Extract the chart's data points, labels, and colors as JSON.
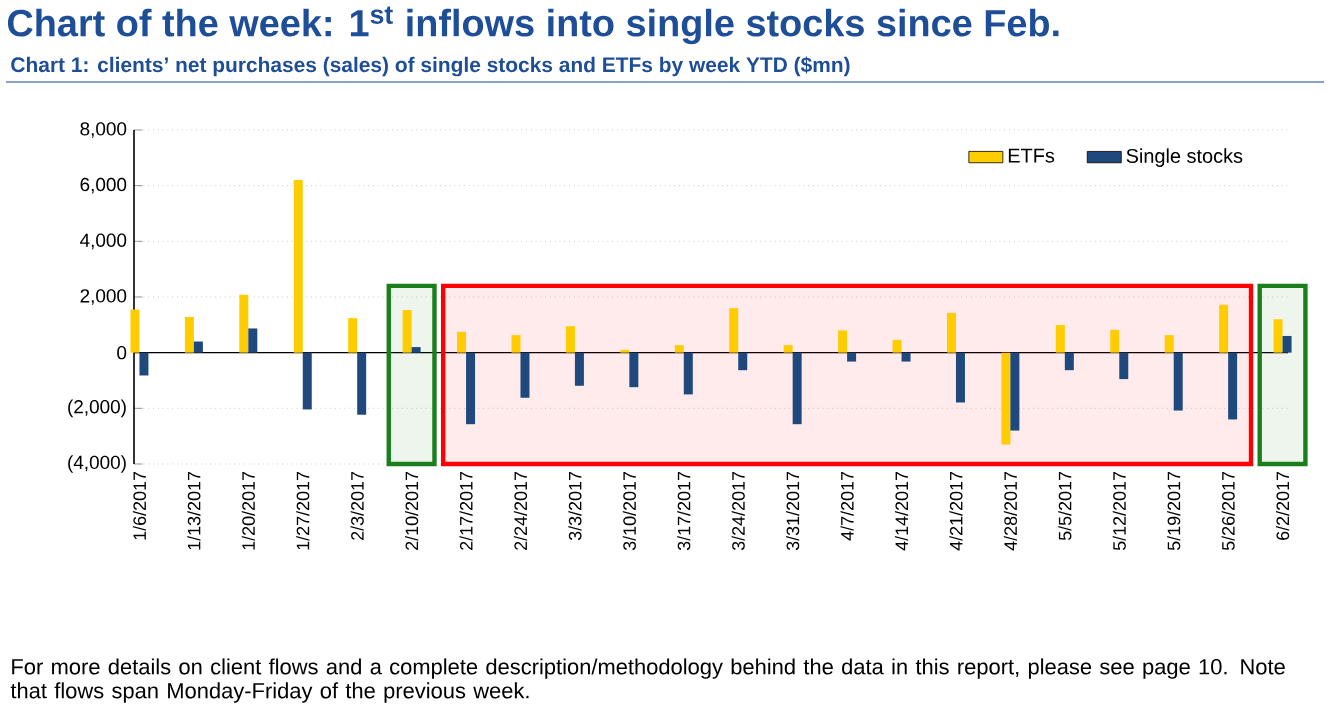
{
  "chart_data": {
    "type": "bar",
    "title": "Chart of the week: 1$^{st}$ inflows into single stocks since Feb.",
    "subtitle": "Chart 1: clients’ net purchases (sales) of single stocks and ETFs by week YTD ($mn)",
    "annotations": [
      "For more details on client flows and a complete description/methodology behind the data in this report, please see page 10. Note that flows span Monday-Friday of the previous week."
    ],
    "categories": [
      "1/6/2017",
      "1/13/2017",
      "1/20/2017",
      "1/27/2017",
      "2/3/2017",
      "2/10/2017",
      "2/17/2017",
      "2/24/2017",
      "3/3/2017",
      "3/10/2017",
      "3/17/2017",
      "3/24/2017",
      "3/31/2017",
      "4/7/2017",
      "4/14/2017",
      "4/21/2017",
      "4/28/2017",
      "5/5/2017",
      "5/12/2017",
      "5/19/2017",
      "5/26/2017",
      "6/2/2017"
    ],
    "series": [
      {
        "name": "ETFs",
        "color": "#ffcc00",
        "values": [
          1550,
          1280,
          2080,
          6200,
          1240,
          1530,
          750,
          630,
          950,
          100,
          270,
          1600,
          270,
          800,
          460,
          1430,
          -3300,
          990,
          820,
          630,
          1720,
          1200
        ]
      },
      {
        "name": "Single stocks",
        "color": "#1f497d",
        "values": [
          -820,
          400,
          870,
          -2040,
          -2230,
          200,
          -2570,
          -1620,
          -1190,
          -1240,
          -1500,
          -630,
          -2570,
          -320,
          -320,
          -1790,
          -2800,
          -630,
          -950,
          -2080,
          -2400,
          600
        ]
      }
    ],
    "ylim": [
      -4000,
      8000
    ],
    "yticks": [
      {
        "value": -4000,
        "label": "(4,000)"
      },
      {
        "value": -2000,
        "label": "(2,000)"
      },
      0,
      {
        "value": 2000,
        "label": "2,000"
      },
      {
        "value": 4000,
        "label": "4,000"
      },
      {
        "value": 6000,
        "label": "6,000"
      },
      {
        "value": 8000,
        "label": "8,000"
      }
    ],
    "grid": "y",
    "legend": "top right",
    "bands": [
      {
        "axis": "x",
        "from": "2/10/2017",
        "to": "2/10/2017",
        "color": "#1a7f1a"
      },
      {
        "axis": "x",
        "from": "2/17/2017",
        "to": "5/26/2017",
        "color": "#ff0000"
      },
      {
        "axis": "x",
        "from": "6/2/2017",
        "to": "6/2/2017",
        "color": "#1a7f1a"
      }
    ]
  }
}
